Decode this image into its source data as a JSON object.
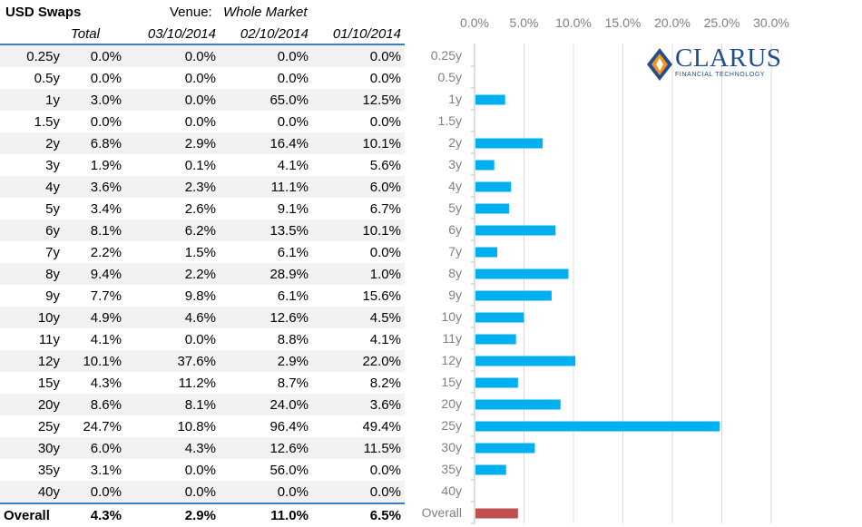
{
  "table": {
    "title": "USD Swaps",
    "venue_label": "Venue:",
    "venue_value": "Whole Market",
    "columns": [
      "Total",
      "03/10/2014",
      "02/10/2014",
      "01/10/2014"
    ],
    "rows": [
      {
        "tenor": "0.25y",
        "total": "0.0%",
        "d1": "0.0%",
        "d2": "0.0%",
        "d3": "0.0%"
      },
      {
        "tenor": "0.5y",
        "total": "0.0%",
        "d1": "0.0%",
        "d2": "0.0%",
        "d3": "0.0%"
      },
      {
        "tenor": "1y",
        "total": "3.0%",
        "d1": "0.0%",
        "d2": "65.0%",
        "d3": "12.5%"
      },
      {
        "tenor": "1.5y",
        "total": "0.0%",
        "d1": "0.0%",
        "d2": "0.0%",
        "d3": "0.0%"
      },
      {
        "tenor": "2y",
        "total": "6.8%",
        "d1": "2.9%",
        "d2": "16.4%",
        "d3": "10.1%"
      },
      {
        "tenor": "3y",
        "total": "1.9%",
        "d1": "0.1%",
        "d2": "4.1%",
        "d3": "5.6%"
      },
      {
        "tenor": "4y",
        "total": "3.6%",
        "d1": "2.3%",
        "d2": "11.1%",
        "d3": "6.0%"
      },
      {
        "tenor": "5y",
        "total": "3.4%",
        "d1": "2.6%",
        "d2": "9.1%",
        "d3": "6.7%"
      },
      {
        "tenor": "6y",
        "total": "8.1%",
        "d1": "6.2%",
        "d2": "13.5%",
        "d3": "10.1%"
      },
      {
        "tenor": "7y",
        "total": "2.2%",
        "d1": "1.5%",
        "d2": "6.1%",
        "d3": "0.0%"
      },
      {
        "tenor": "8y",
        "total": "9.4%",
        "d1": "2.2%",
        "d2": "28.9%",
        "d3": "1.0%"
      },
      {
        "tenor": "9y",
        "total": "7.7%",
        "d1": "9.8%",
        "d2": "6.1%",
        "d3": "15.6%"
      },
      {
        "tenor": "10y",
        "total": "4.9%",
        "d1": "4.6%",
        "d2": "12.6%",
        "d3": "4.5%"
      },
      {
        "tenor": "11y",
        "total": "4.1%",
        "d1": "0.0%",
        "d2": "8.8%",
        "d3": "4.1%"
      },
      {
        "tenor": "12y",
        "total": "10.1%",
        "d1": "37.6%",
        "d2": "2.9%",
        "d3": "22.0%"
      },
      {
        "tenor": "15y",
        "total": "4.3%",
        "d1": "11.2%",
        "d2": "8.7%",
        "d3": "8.2%"
      },
      {
        "tenor": "20y",
        "total": "8.6%",
        "d1": "8.1%",
        "d2": "24.0%",
        "d3": "3.6%"
      },
      {
        "tenor": "25y",
        "total": "24.7%",
        "d1": "10.8%",
        "d2": "96.4%",
        "d3": "49.4%"
      },
      {
        "tenor": "30y",
        "total": "6.0%",
        "d1": "4.3%",
        "d2": "12.6%",
        "d3": "11.5%"
      },
      {
        "tenor": "35y",
        "total": "3.1%",
        "d1": "0.0%",
        "d2": "56.0%",
        "d3": "0.0%"
      },
      {
        "tenor": "40y",
        "total": "0.0%",
        "d1": "0.0%",
        "d2": "0.0%",
        "d3": "0.0%"
      }
    ],
    "overall": {
      "label": "Overall",
      "total": "4.3%",
      "d1": "2.9%",
      "d2": "11.0%",
      "d3": "6.5%"
    }
  },
  "logo": {
    "name": "CLARUS",
    "tagline": "FINANCIAL TECHNOLOGY"
  },
  "chart_data": {
    "type": "bar",
    "orientation": "horizontal",
    "categories": [
      "0.25y",
      "0.5y",
      "1y",
      "1.5y",
      "2y",
      "3y",
      "4y",
      "5y",
      "6y",
      "7y",
      "8y",
      "9y",
      "10y",
      "11y",
      "12y",
      "15y",
      "20y",
      "25y",
      "30y",
      "35y",
      "40y",
      "Overall"
    ],
    "values": [
      0.0,
      0.0,
      3.0,
      0.0,
      6.8,
      1.9,
      3.6,
      3.4,
      8.1,
      2.2,
      9.4,
      7.7,
      4.9,
      4.1,
      10.1,
      4.3,
      8.6,
      24.7,
      6.0,
      3.1,
      0.0,
      4.3
    ],
    "xlim": [
      0,
      30
    ],
    "xticks": [
      "0.0%",
      "5.0%",
      "10.0%",
      "15.0%",
      "20.0%",
      "25.0%",
      "30.0%"
    ],
    "x_axis_position": "top",
    "grid": true,
    "colors": {
      "bar": "#00b0f0",
      "overall_bar": "#c0504d",
      "grid": "#d9d9d9",
      "axis_text": "#808080"
    }
  }
}
